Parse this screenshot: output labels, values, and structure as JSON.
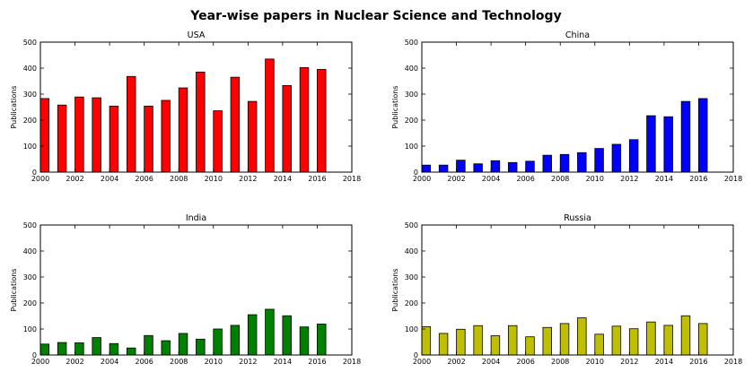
{
  "figure": {
    "title": "Year-wise papers in Nuclear Science and Technology"
  },
  "chart_data": [
    {
      "type": "bar",
      "title": "USA",
      "xlabel": "",
      "ylabel": "Publications",
      "color": "#ff0000",
      "xlim": [
        2000,
        2018
      ],
      "ylim": [
        0,
        500
      ],
      "grid": false,
      "xticks": [
        2000,
        2002,
        2004,
        2006,
        2008,
        2010,
        2012,
        2014,
        2016,
        2018
      ],
      "yticks": [
        0,
        100,
        200,
        300,
        400,
        500
      ],
      "x": [
        2000,
        2001,
        2002,
        2003,
        2004,
        2005,
        2006,
        2007,
        2008,
        2009,
        2010,
        2011,
        2012,
        2013,
        2014,
        2015,
        2016
      ],
      "values": [
        283,
        258,
        289,
        286,
        254,
        368,
        254,
        276,
        324,
        385,
        236,
        365,
        272,
        435,
        333,
        402,
        395
      ]
    },
    {
      "type": "bar",
      "title": "China",
      "xlabel": "",
      "ylabel": "Publications",
      "color": "#0000ff",
      "xlim": [
        2000,
        2018
      ],
      "ylim": [
        0,
        500
      ],
      "grid": false,
      "xticks": [
        2000,
        2002,
        2004,
        2006,
        2008,
        2010,
        2012,
        2014,
        2016,
        2018
      ],
      "yticks": [
        0,
        100,
        200,
        300,
        400,
        500
      ],
      "x": [
        2000,
        2001,
        2002,
        2003,
        2004,
        2005,
        2006,
        2007,
        2008,
        2009,
        2010,
        2011,
        2012,
        2013,
        2014,
        2015,
        2016
      ],
      "values": [
        27,
        27,
        46,
        32,
        44,
        37,
        42,
        65,
        68,
        75,
        91,
        107,
        125,
        217,
        213,
        272,
        283
      ]
    },
    {
      "type": "bar",
      "title": "India",
      "xlabel": "",
      "ylabel": "Publications",
      "color": "#008000",
      "xlim": [
        2000,
        2018
      ],
      "ylim": [
        0,
        500
      ],
      "grid": false,
      "xticks": [
        2000,
        2002,
        2004,
        2006,
        2008,
        2010,
        2012,
        2014,
        2016,
        2018
      ],
      "yticks": [
        0,
        100,
        200,
        300,
        400,
        500
      ],
      "x": [
        2000,
        2001,
        2002,
        2003,
        2004,
        2005,
        2006,
        2007,
        2008,
        2009,
        2010,
        2011,
        2012,
        2013,
        2014,
        2015,
        2016
      ],
      "values": [
        42,
        48,
        47,
        67,
        44,
        27,
        75,
        55,
        83,
        61,
        100,
        114,
        155,
        176,
        151,
        108,
        119
      ]
    },
    {
      "type": "bar",
      "title": "Russia",
      "xlabel": "",
      "ylabel": "Publications",
      "color": "#bfbf00",
      "xlim": [
        2000,
        2018
      ],
      "ylim": [
        0,
        500
      ],
      "grid": false,
      "xticks": [
        2000,
        2002,
        2004,
        2006,
        2008,
        2010,
        2012,
        2014,
        2016,
        2018
      ],
      "yticks": [
        0,
        100,
        200,
        300,
        400,
        500
      ],
      "x": [
        2000,
        2001,
        2002,
        2003,
        2004,
        2005,
        2006,
        2007,
        2008,
        2009,
        2010,
        2011,
        2012,
        2013,
        2014,
        2015,
        2016
      ],
      "values": [
        109,
        83,
        99,
        113,
        74,
        113,
        70,
        106,
        121,
        143,
        80,
        111,
        101,
        127,
        114,
        151,
        121
      ]
    }
  ]
}
